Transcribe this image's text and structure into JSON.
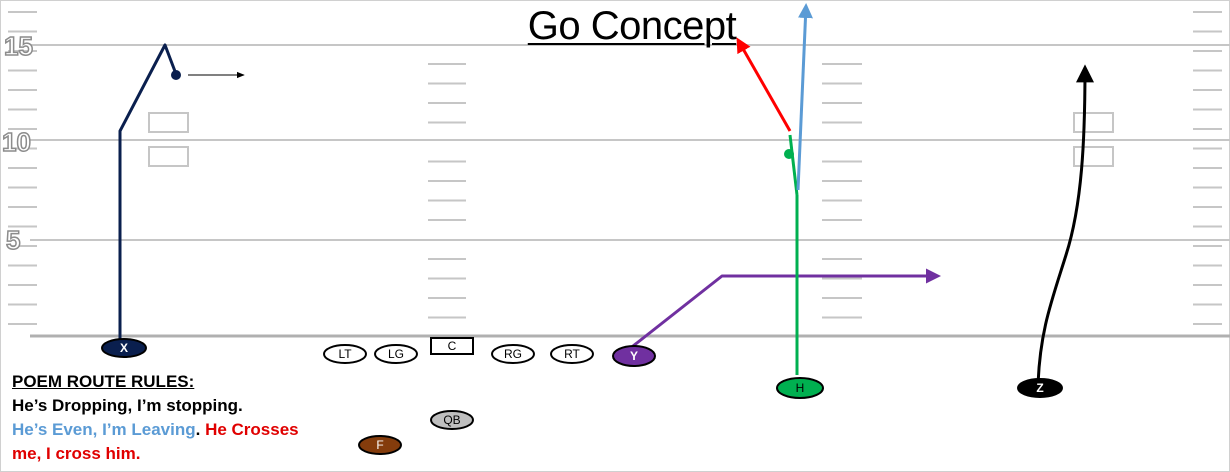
{
  "title": "Go Concept",
  "yard_numbers": [
    "15",
    "10",
    "5"
  ],
  "players": [
    {
      "id": "X",
      "label": "X",
      "fill": "#0a1f4e",
      "text": "#ffffff"
    },
    {
      "id": "LT",
      "label": "LT",
      "fill": "#ffffff",
      "text": "#000000"
    },
    {
      "id": "LG",
      "label": "LG",
      "fill": "#ffffff",
      "text": "#000000"
    },
    {
      "id": "C",
      "label": "C",
      "fill": "#ffffff",
      "text": "#000000",
      "shape": "rect"
    },
    {
      "id": "RG",
      "label": "RG",
      "fill": "#ffffff",
      "text": "#000000"
    },
    {
      "id": "RT",
      "label": "RT",
      "fill": "#ffffff",
      "text": "#000000"
    },
    {
      "id": "Y",
      "label": "Y",
      "fill": "#7030a0",
      "text": "#ffffff"
    },
    {
      "id": "H",
      "label": "H",
      "fill": "#00b050",
      "text": "#000000"
    },
    {
      "id": "Z",
      "label": "Z",
      "fill": "#000000",
      "text": "#ffffff"
    },
    {
      "id": "QB",
      "label": "QB",
      "fill": "#bfbfbf",
      "text": "#000000"
    },
    {
      "id": "F",
      "label": "F",
      "fill": "#843c0c",
      "text": "#ffffff"
    }
  ],
  "route_colors": {
    "x": "#0a1f4e",
    "y": "#7030a0",
    "h": "#00b050",
    "h_option_red": "#ff0000",
    "h_option_blue": "#5b9bd5",
    "z": "#000000"
  },
  "rules": {
    "heading": "POEM ROUTE RULES:",
    "line1": "He’s Dropping, I’m stopping.",
    "line2": "He’s Even, I’m Leaving",
    "line2_end": ". ",
    "line3": "He Crosses me, I cross him."
  }
}
